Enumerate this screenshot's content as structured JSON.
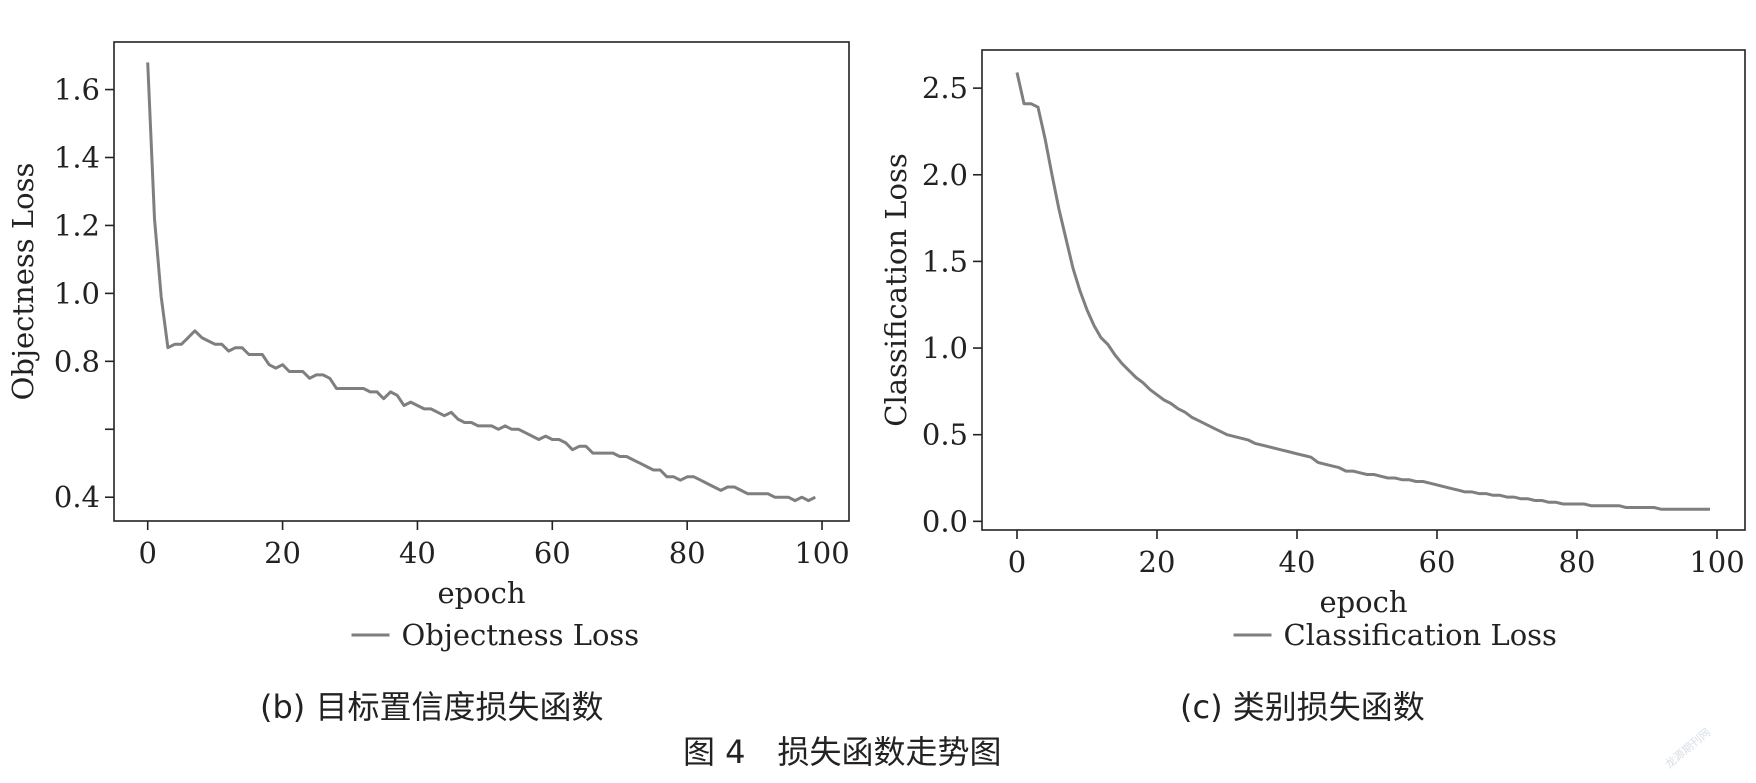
{
  "chart_data": [
    {
      "type": "line",
      "ylabel": "Objectness Loss",
      "xlabel": "epoch",
      "xticks": [
        "0",
        "20",
        "40",
        "60",
        "80",
        "100"
      ],
      "yticks": [
        "0.4",
        "0.6",
        "0.8",
        "1.0",
        "1.2",
        "1.4",
        "1.6"
      ],
      "ytick_labels_shown": [
        "0.4",
        "0.8",
        "1.0",
        "1.2",
        "1.4",
        "1.6"
      ],
      "xlim": [
        -5,
        104
      ],
      "ylim": [
        0.33,
        1.74
      ],
      "legend": "bottom-center",
      "grid": false,
      "caption": "(b) 目标置信度损失函数",
      "series": [
        {
          "name": "Objectness Loss",
          "color": "#7f7f7f",
          "x": [
            0,
            1,
            2,
            3,
            4,
            5,
            6,
            7,
            8,
            9,
            10,
            11,
            12,
            13,
            14,
            15,
            16,
            17,
            18,
            19,
            20,
            21,
            22,
            23,
            24,
            25,
            26,
            27,
            28,
            29,
            30,
            31,
            32,
            33,
            34,
            35,
            36,
            37,
            38,
            39,
            40,
            41,
            42,
            43,
            44,
            45,
            46,
            47,
            48,
            49,
            50,
            51,
            52,
            53,
            54,
            55,
            56,
            57,
            58,
            59,
            60,
            61,
            62,
            63,
            64,
            65,
            66,
            67,
            68,
            69,
            70,
            71,
            72,
            73,
            74,
            75,
            76,
            77,
            78,
            79,
            80,
            81,
            82,
            83,
            84,
            85,
            86,
            87,
            88,
            89,
            90,
            91,
            92,
            93,
            94,
            95,
            96,
            97,
            98,
            99
          ],
          "y": [
            1.68,
            1.22,
            0.99,
            0.84,
            0.85,
            0.85,
            0.87,
            0.89,
            0.87,
            0.86,
            0.85,
            0.85,
            0.83,
            0.84,
            0.84,
            0.82,
            0.82,
            0.82,
            0.79,
            0.78,
            0.79,
            0.77,
            0.77,
            0.77,
            0.75,
            0.76,
            0.76,
            0.75,
            0.72,
            0.72,
            0.72,
            0.72,
            0.72,
            0.71,
            0.71,
            0.69,
            0.71,
            0.7,
            0.67,
            0.68,
            0.67,
            0.66,
            0.66,
            0.65,
            0.64,
            0.65,
            0.63,
            0.62,
            0.62,
            0.61,
            0.61,
            0.61,
            0.6,
            0.61,
            0.6,
            0.6,
            0.59,
            0.58,
            0.57,
            0.58,
            0.57,
            0.57,
            0.56,
            0.54,
            0.55,
            0.55,
            0.53,
            0.53,
            0.53,
            0.53,
            0.52,
            0.52,
            0.51,
            0.5,
            0.49,
            0.48,
            0.48,
            0.46,
            0.46,
            0.45,
            0.46,
            0.46,
            0.45,
            0.44,
            0.43,
            0.42,
            0.43,
            0.43,
            0.42,
            0.41,
            0.41,
            0.41,
            0.41,
            0.4,
            0.4,
            0.4,
            0.39,
            0.4,
            0.39,
            0.4
          ]
        }
      ]
    },
    {
      "type": "line",
      "ylabel": "Classification Loss",
      "xlabel": "epoch",
      "xticks": [
        "0",
        "20",
        "40",
        "60",
        "80",
        "100"
      ],
      "yticks": [
        "0.0",
        "0.5",
        "1.0",
        "1.5",
        "2.0",
        "2.5"
      ],
      "xlim": [
        -5,
        104
      ],
      "ylim": [
        -0.05,
        2.72
      ],
      "legend": "bottom-center",
      "grid": false,
      "caption": "(c) 类别损失函数",
      "series": [
        {
          "name": "Classification Loss",
          "color": "#7f7f7f",
          "x": [
            0,
            1,
            2,
            3,
            4,
            5,
            6,
            7,
            8,
            9,
            10,
            11,
            12,
            13,
            14,
            15,
            16,
            17,
            18,
            19,
            20,
            21,
            22,
            23,
            24,
            25,
            26,
            27,
            28,
            29,
            30,
            31,
            32,
            33,
            34,
            35,
            36,
            37,
            38,
            39,
            40,
            41,
            42,
            43,
            44,
            45,
            46,
            47,
            48,
            49,
            50,
            51,
            52,
            53,
            54,
            55,
            56,
            57,
            58,
            59,
            60,
            61,
            62,
            63,
            64,
            65,
            66,
            67,
            68,
            69,
            70,
            71,
            72,
            73,
            74,
            75,
            76,
            77,
            78,
            79,
            80,
            81,
            82,
            83,
            84,
            85,
            86,
            87,
            88,
            89,
            90,
            91,
            92,
            93,
            94,
            95,
            96,
            97,
            98,
            99
          ],
          "y": [
            2.59,
            2.41,
            2.41,
            2.39,
            2.21,
            2.0,
            1.8,
            1.63,
            1.46,
            1.33,
            1.22,
            1.13,
            1.06,
            1.02,
            0.96,
            0.91,
            0.87,
            0.83,
            0.8,
            0.76,
            0.73,
            0.7,
            0.68,
            0.65,
            0.63,
            0.6,
            0.58,
            0.56,
            0.54,
            0.52,
            0.5,
            0.49,
            0.48,
            0.47,
            0.45,
            0.44,
            0.43,
            0.42,
            0.41,
            0.4,
            0.39,
            0.38,
            0.37,
            0.34,
            0.33,
            0.32,
            0.31,
            0.29,
            0.29,
            0.28,
            0.27,
            0.27,
            0.26,
            0.25,
            0.25,
            0.24,
            0.24,
            0.23,
            0.23,
            0.22,
            0.21,
            0.2,
            0.19,
            0.18,
            0.17,
            0.17,
            0.16,
            0.16,
            0.15,
            0.15,
            0.14,
            0.14,
            0.13,
            0.13,
            0.12,
            0.12,
            0.11,
            0.11,
            0.1,
            0.1,
            0.1,
            0.1,
            0.09,
            0.09,
            0.09,
            0.09,
            0.09,
            0.08,
            0.08,
            0.08,
            0.08,
            0.08,
            0.07,
            0.07,
            0.07,
            0.07,
            0.07,
            0.07,
            0.07,
            0.07
          ]
        }
      ]
    }
  ],
  "figure_caption": "图 4　损失函数走势图",
  "watermark": "龙源期刊网"
}
